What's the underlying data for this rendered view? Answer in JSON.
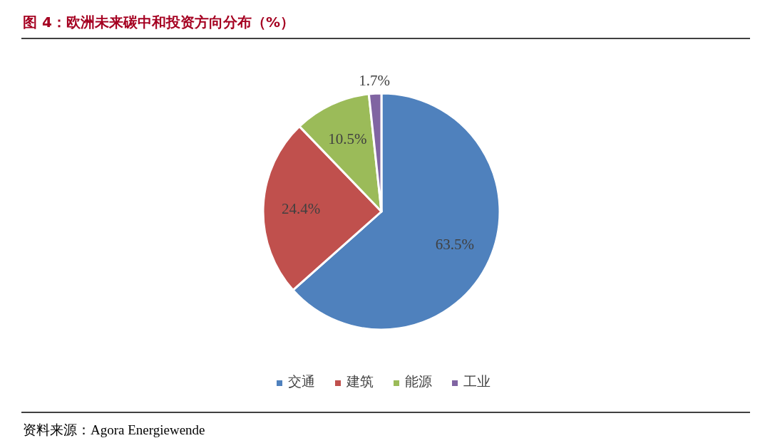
{
  "chart_data": {
    "type": "pie",
    "title": "图 4：欧洲未来碳中和投资方向分布（%）",
    "categories": [
      "交通",
      "建筑",
      "能源",
      "工业"
    ],
    "values": [
      63.5,
      24.4,
      10.5,
      1.7
    ],
    "colors": [
      "#4f81bd",
      "#c0504d",
      "#9bbb59",
      "#8064a2"
    ],
    "value_labels": [
      "63.5%",
      "24.4%",
      "10.5%",
      "1.7%"
    ],
    "legend": "bottom",
    "annotations": [
      "资料来源：Agora Energiewende"
    ]
  }
}
